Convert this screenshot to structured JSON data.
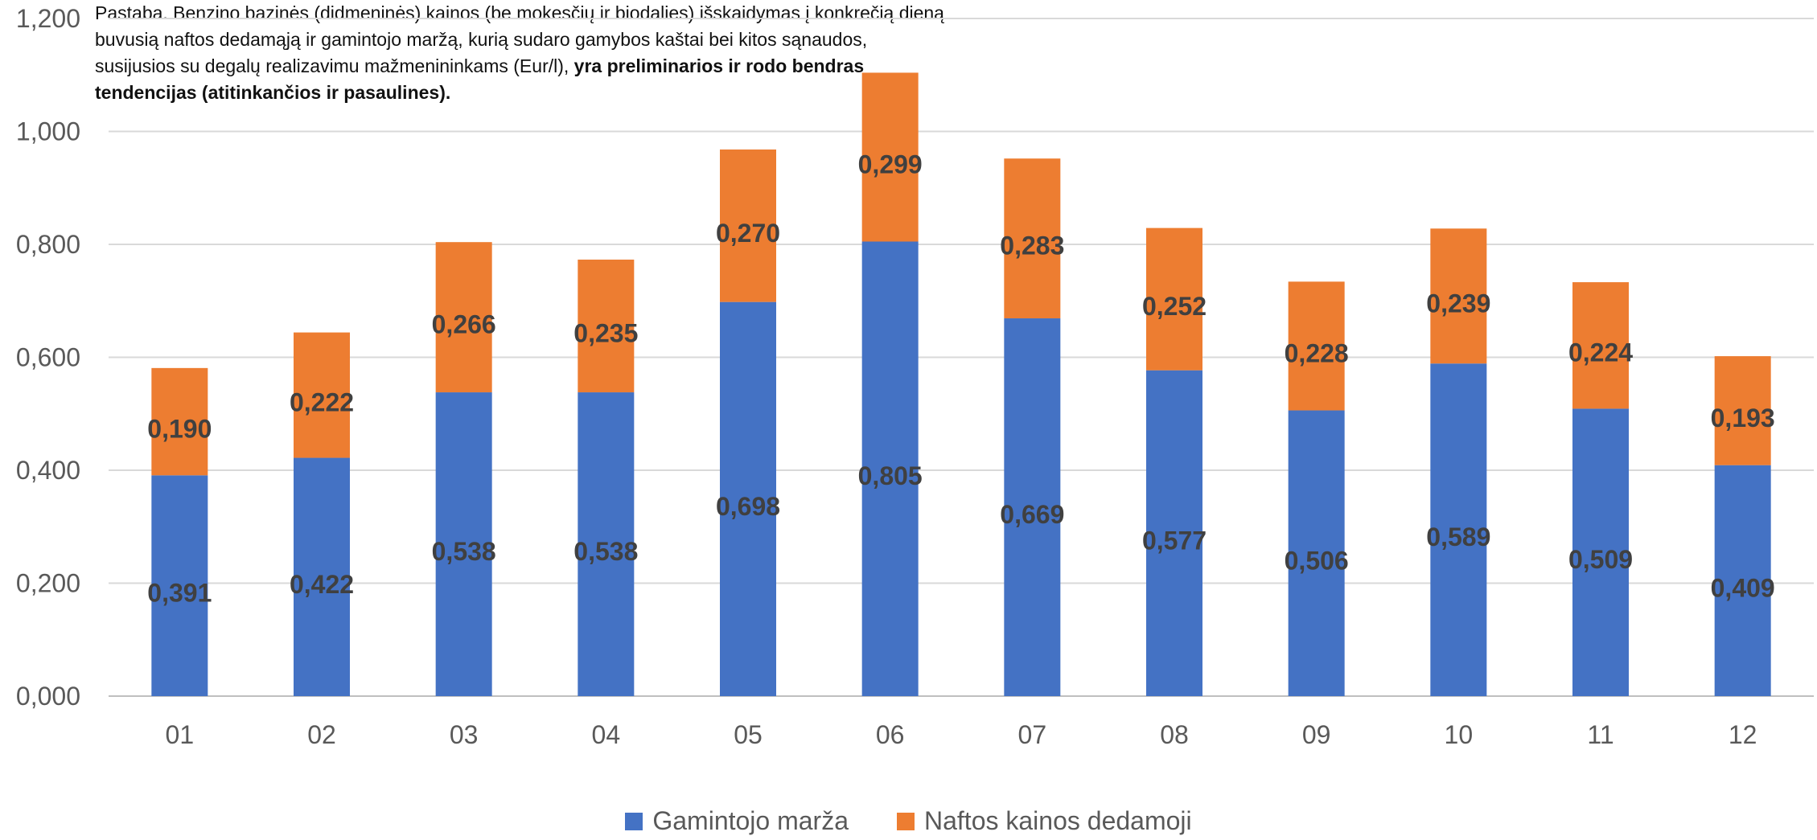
{
  "note": {
    "text": "Pastaba. Benzino bazinės (didmeninės) kainos (be mokesčių ir biodalies) išskaidymas į konkrečią dieną buvusią naftos dedamąją ir gamintojo maržą, kurią sudaro gamybos kaštai bei kitos sąnaudos, susijusios su degalų realizavimu mažmenininkams (Eur/l), ",
    "bold": "yra preliminarios ir rodo bendras tendencijas (atitinkančios ir pasaulines)."
  },
  "colors": {
    "margin": "#4472C4",
    "oil": "#ED7D31",
    "grid": "#D9D9D9"
  },
  "chart_data": {
    "type": "bar",
    "stacked": true,
    "categories": [
      "01",
      "02",
      "03",
      "04",
      "05",
      "06",
      "07",
      "08",
      "09",
      "10",
      "11",
      "12"
    ],
    "series": [
      {
        "name": "Gamintojo marža",
        "values": [
          0.391,
          0.422,
          0.538,
          0.538,
          0.698,
          0.805,
          0.669,
          0.577,
          0.506,
          0.589,
          0.509,
          0.409
        ],
        "labels": [
          "0,391",
          "0,422",
          "0,538",
          "0,538",
          "0,698",
          "0,805",
          "0,669",
          "0,577",
          "0,506",
          "0,589",
          "0,509",
          "0,409"
        ]
      },
      {
        "name": "Naftos kainos dedamoji",
        "values": [
          0.19,
          0.222,
          0.266,
          0.235,
          0.27,
          0.299,
          0.283,
          0.252,
          0.228,
          0.239,
          0.224,
          0.193
        ],
        "labels": [
          "0,190",
          "0,222",
          "0,266",
          "0,235",
          "0,270",
          "0,299",
          "0,283",
          "0,252",
          "0,228",
          "0,239",
          "0,224",
          "0,193"
        ]
      }
    ],
    "ylim": [
      0,
      1.2
    ],
    "yticks": [
      "0,000",
      "0,200",
      "0,400",
      "0,600",
      "0,800",
      "1,000",
      "1,200"
    ],
    "grid": true,
    "legend": "bottom"
  }
}
